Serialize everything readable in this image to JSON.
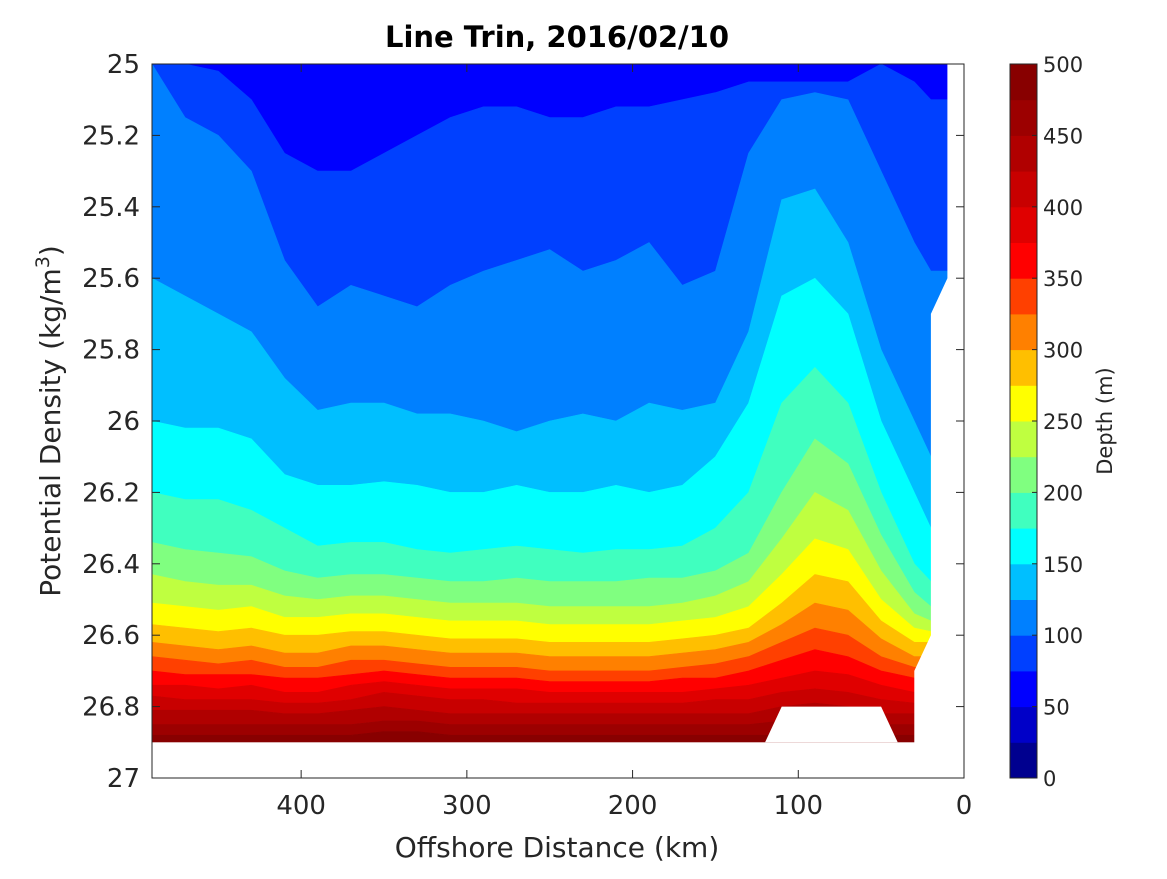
{
  "chart_data": {
    "type": "contour",
    "title": "Line Trin, 2016/02/10",
    "xlabel": "Offshore Distance (km)",
    "ylabel_prefix": "Potential Density (kg/m",
    "ylabel_sup": "3",
    "ylabel_suffix": ")",
    "xlim": [
      490,
      0
    ],
    "x_reversed": true,
    "ylim": [
      25,
      27
    ],
    "y_reversed": true,
    "xticks": [
      400,
      300,
      200,
      100,
      0
    ],
    "xtick_labels": [
      "400",
      "300",
      "200",
      "100",
      "0"
    ],
    "yticks": [
      25,
      25.2,
      25.4,
      25.6,
      25.8,
      26,
      26.2,
      26.4,
      26.6,
      26.8,
      27
    ],
    "ytick_labels": [
      "25",
      "25.2",
      "25.4",
      "25.6",
      "25.8",
      "26",
      "26.2",
      "26.4",
      "26.6",
      "26.8",
      "27"
    ],
    "colorbar": {
      "label": "Depth (m)",
      "range": [
        0,
        500
      ],
      "ticks": [
        0,
        50,
        100,
        150,
        200,
        250,
        300,
        350,
        400,
        450,
        500
      ],
      "tick_labels": [
        "0",
        "50",
        "100",
        "150",
        "200",
        "250",
        "300",
        "350",
        "400",
        "450",
        "500"
      ],
      "level_step": 25,
      "colors": [
        "#00008f",
        "#0000c8",
        "#0000ff",
        "#0040ff",
        "#0080ff",
        "#00bfff",
        "#00ffff",
        "#40ffbf",
        "#80ff80",
        "#bfff40",
        "#ffff00",
        "#ffbf00",
        "#ff8000",
        "#ff4000",
        "#ff0000",
        "#e00000",
        "#c80000",
        "#b00000",
        "#9c0000",
        "#880000"
      ]
    },
    "x_stations": [
      490,
      470,
      450,
      430,
      410,
      390,
      370,
      350,
      330,
      310,
      290,
      270,
      250,
      230,
      210,
      190,
      170,
      150,
      130,
      110,
      90,
      70,
      50,
      30,
      20
    ],
    "depth_isolines": [
      {
        "depth": 50,
        "y": [
          25.0,
          25.0,
          25.0,
          25.0,
          25.0,
          25.0,
          25.0,
          25.0,
          25.15,
          25.05,
          25.0,
          25.0,
          25.0,
          25.0,
          25.0,
          25.0,
          25.0,
          25.0,
          25.0,
          25.0,
          25.0,
          25.0,
          25.0,
          25.0,
          25.0
        ]
      },
      {
        "depth": 75,
        "y": [
          25.0,
          25.0,
          25.02,
          25.1,
          25.25,
          25.3,
          25.3,
          25.25,
          25.2,
          25.15,
          25.12,
          25.12,
          25.15,
          25.15,
          25.12,
          25.12,
          25.1,
          25.08,
          25.05,
          25.05,
          25.05,
          25.05,
          25.0,
          25.05,
          25.1
        ]
      },
      {
        "depth": 100,
        "y": [
          25.0,
          25.15,
          25.2,
          25.3,
          25.55,
          25.68,
          25.62,
          25.65,
          25.68,
          25.62,
          25.58,
          25.55,
          25.52,
          25.58,
          25.55,
          25.5,
          25.62,
          25.58,
          25.25,
          25.1,
          25.08,
          25.1,
          25.3,
          25.5,
          25.58
        ]
      },
      {
        "depth": 125,
        "y": [
          25.6,
          25.65,
          25.7,
          25.75,
          25.88,
          25.97,
          25.95,
          25.95,
          25.98,
          25.98,
          26.0,
          26.03,
          26.0,
          25.98,
          26.0,
          25.95,
          25.97,
          25.95,
          25.75,
          25.38,
          25.35,
          25.5,
          25.8,
          26.0,
          26.1
        ]
      },
      {
        "depth": 150,
        "y": [
          26.0,
          26.02,
          26.02,
          26.05,
          26.15,
          26.18,
          26.18,
          26.17,
          26.18,
          26.2,
          26.2,
          26.18,
          26.2,
          26.2,
          26.18,
          26.2,
          26.18,
          26.1,
          25.95,
          25.65,
          25.6,
          25.7,
          26.0,
          26.2,
          26.3
        ]
      },
      {
        "depth": 175,
        "y": [
          26.2,
          26.22,
          26.22,
          26.25,
          26.3,
          26.35,
          26.34,
          26.34,
          26.36,
          26.37,
          26.36,
          26.35,
          26.36,
          26.37,
          26.36,
          26.36,
          26.35,
          26.3,
          26.2,
          25.95,
          25.85,
          25.95,
          26.2,
          26.4,
          26.45
        ]
      },
      {
        "depth": 200,
        "y": [
          26.34,
          26.36,
          26.37,
          26.38,
          26.42,
          26.44,
          26.43,
          26.43,
          26.44,
          26.45,
          26.45,
          26.44,
          26.45,
          26.45,
          26.45,
          26.44,
          26.44,
          26.42,
          26.37,
          26.2,
          26.05,
          26.12,
          26.32,
          26.48,
          26.52
        ]
      },
      {
        "depth": 225,
        "y": [
          26.43,
          26.45,
          26.46,
          26.46,
          26.49,
          26.5,
          26.49,
          26.49,
          26.5,
          26.51,
          26.51,
          26.51,
          26.52,
          26.52,
          26.52,
          26.52,
          26.51,
          26.49,
          26.45,
          26.33,
          26.2,
          26.25,
          26.42,
          26.54,
          26.56
        ]
      },
      {
        "depth": 250,
        "y": [
          26.51,
          26.52,
          26.53,
          26.52,
          26.55,
          26.55,
          26.54,
          26.54,
          26.55,
          26.56,
          26.56,
          26.56,
          26.57,
          26.57,
          26.57,
          26.57,
          26.56,
          26.55,
          26.52,
          26.43,
          26.33,
          26.36,
          26.5,
          26.58,
          26.59
        ]
      },
      {
        "depth": 275,
        "y": [
          26.57,
          26.58,
          26.59,
          26.58,
          26.6,
          26.6,
          26.59,
          26.59,
          26.6,
          26.61,
          26.61,
          26.61,
          26.62,
          26.62,
          26.62,
          26.62,
          26.61,
          26.6,
          26.58,
          26.51,
          26.43,
          26.45,
          26.56,
          26.62,
          26.62
        ]
      },
      {
        "depth": 300,
        "y": [
          26.62,
          26.63,
          26.64,
          26.63,
          26.65,
          26.65,
          26.63,
          26.63,
          26.64,
          26.65,
          26.65,
          26.65,
          26.66,
          26.66,
          26.66,
          26.66,
          26.65,
          26.64,
          26.62,
          26.57,
          26.51,
          26.53,
          26.61,
          26.66,
          26.66
        ]
      },
      {
        "depth": 325,
        "y": [
          26.66,
          26.67,
          26.68,
          26.67,
          26.69,
          26.69,
          26.67,
          26.67,
          26.68,
          26.69,
          26.69,
          26.69,
          26.7,
          26.7,
          26.7,
          26.7,
          26.69,
          26.68,
          26.66,
          26.62,
          26.58,
          26.6,
          26.66,
          26.69,
          26.69
        ]
      },
      {
        "depth": 350,
        "y": [
          26.7,
          26.71,
          26.71,
          26.71,
          26.72,
          26.72,
          26.71,
          26.7,
          26.71,
          26.72,
          26.72,
          26.72,
          26.73,
          26.73,
          26.73,
          26.73,
          26.72,
          26.72,
          26.7,
          26.67,
          26.64,
          26.66,
          26.7,
          26.72,
          26.72
        ]
      },
      {
        "depth": 375,
        "y": [
          26.74,
          26.74,
          26.75,
          26.74,
          26.76,
          26.76,
          26.74,
          26.73,
          26.74,
          26.75,
          26.75,
          26.75,
          26.76,
          26.76,
          26.76,
          26.76,
          26.76,
          26.75,
          26.74,
          26.72,
          26.7,
          26.71,
          26.74,
          26.76,
          26.76
        ]
      },
      {
        "depth": 400,
        "y": [
          26.77,
          26.78,
          26.78,
          26.78,
          26.79,
          26.79,
          26.78,
          26.76,
          26.77,
          26.78,
          26.78,
          26.79,
          26.79,
          26.79,
          26.79,
          26.79,
          26.79,
          26.78,
          26.78,
          26.76,
          26.75,
          26.76,
          26.78,
          26.79,
          26.79
        ]
      },
      {
        "depth": 425,
        "y": [
          26.81,
          26.81,
          26.81,
          26.81,
          26.82,
          26.82,
          26.81,
          26.8,
          26.81,
          26.82,
          26.82,
          26.82,
          26.82,
          26.82,
          26.82,
          26.82,
          26.82,
          26.82,
          26.82,
          26.8,
          26.79,
          26.8,
          26.82,
          26.82,
          26.82
        ]
      },
      {
        "depth": 450,
        "y": [
          26.85,
          26.85,
          26.85,
          26.85,
          26.85,
          26.85,
          26.85,
          26.84,
          26.84,
          26.85,
          26.85,
          26.85,
          26.85,
          26.85,
          26.85,
          26.85,
          26.85,
          26.85,
          26.85,
          26.84,
          26.83,
          26.84,
          26.85,
          26.85,
          26.85
        ]
      },
      {
        "depth": 475,
        "y": [
          26.88,
          26.88,
          26.88,
          26.88,
          26.88,
          26.88,
          26.88,
          26.87,
          26.87,
          26.88,
          26.88,
          26.88,
          26.88,
          26.88,
          26.88,
          26.88,
          26.88,
          26.88,
          26.88,
          26.88,
          26.87,
          26.88,
          26.88,
          26.88,
          26.88
        ]
      }
    ],
    "data_bottom": 26.9,
    "no_data_regions": [
      {
        "name": "ridge-gap",
        "outline": [
          [
            120,
            26.9
          ],
          [
            110,
            26.8
          ],
          [
            50,
            26.8
          ],
          [
            40,
            26.9
          ]
        ]
      },
      {
        "name": "nearshore",
        "outline": [
          [
            30,
            26.9
          ],
          [
            30,
            26.7
          ],
          [
            20,
            26.6
          ],
          [
            20,
            25.7
          ],
          [
            10,
            25.6
          ],
          [
            10,
            25.0
          ],
          [
            0,
            25.0
          ],
          [
            0,
            27.0
          ],
          [
            30,
            27.0
          ]
        ]
      }
    ]
  }
}
